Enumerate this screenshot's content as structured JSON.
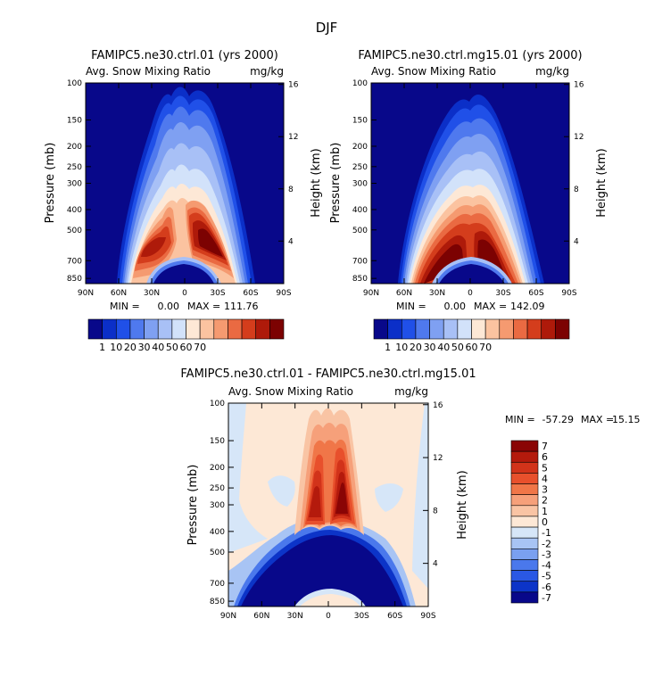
{
  "figure": {
    "title": "DJF"
  },
  "chart_data": [
    {
      "type": "contour",
      "id": "p1",
      "title": "FAMIPC5.ne30.ctrl.01 (yrs 2000)",
      "subtitle_left": "Avg. Snow Mixing Ratio",
      "subtitle_right": "mg/kg",
      "xlabel": "",
      "ylabel": "Pressure (mb)",
      "ylabel_right": "Height (km)",
      "xticks": [
        "90N",
        "60N",
        "30N",
        "0",
        "30S",
        "60S",
        "90S"
      ],
      "yticks": [
        "100",
        "150",
        "200",
        "250",
        "300",
        "400",
        "500",
        "700",
        "850"
      ],
      "yticks_right": [
        "16",
        "12",
        "8",
        "4"
      ],
      "stats": {
        "min_label": "MIN =",
        "min": "0.00",
        "max_label": "MAX =",
        "max": "111.76"
      },
      "colorbar": {
        "labels": [
          "1",
          "10",
          "20",
          "30",
          "40",
          "50",
          "60",
          "70"
        ],
        "colors": [
          "#08088a",
          "#0b2fc8",
          "#2050e8",
          "#4f79ee",
          "#7fa0f2",
          "#a8c0f6",
          "#d2e2fa",
          "#fde8d6",
          "#fbc3a0",
          "#f59a70",
          "#ea6a42",
          "#d43d1c",
          "#ae1a0a",
          "#7c0202"
        ]
      }
    },
    {
      "type": "contour",
      "id": "p2",
      "title": "FAMIPC5.ne30.ctrl.mg15.01 (yrs 2000)",
      "subtitle_left": "Avg. Snow Mixing Ratio",
      "subtitle_right": "mg/kg",
      "xlabel": "",
      "ylabel": "Pressure (mb)",
      "ylabel_right": "Height (km)",
      "xticks": [
        "90N",
        "60N",
        "30N",
        "0",
        "30S",
        "60S",
        "90S"
      ],
      "yticks": [
        "100",
        "150",
        "200",
        "250",
        "300",
        "400",
        "500",
        "700",
        "850"
      ],
      "yticks_right": [
        "16",
        "12",
        "8",
        "4"
      ],
      "stats": {
        "min_label": "MIN =",
        "min": "0.00",
        "max_label": "MAX =",
        "max": "142.09"
      },
      "colorbar": {
        "labels": [
          "1",
          "10",
          "20",
          "30",
          "40",
          "50",
          "60",
          "70"
        ],
        "colors": [
          "#08088a",
          "#0b2fc8",
          "#2050e8",
          "#4f79ee",
          "#7fa0f2",
          "#a8c0f6",
          "#d2e2fa",
          "#fde8d6",
          "#fbc3a0",
          "#f59a70",
          "#ea6a42",
          "#d43d1c",
          "#ae1a0a",
          "#7c0202"
        ]
      }
    },
    {
      "type": "contour",
      "id": "p3",
      "title": "FAMIPC5.ne30.ctrl.01 - FAMIPC5.ne30.ctrl.mg15.01",
      "subtitle_left": "Avg. Snow Mixing Ratio",
      "subtitle_right": "mg/kg",
      "xlabel": "",
      "ylabel": "Pressure (mb)",
      "ylabel_right": "Height (km)",
      "xticks": [
        "90N",
        "60N",
        "30N",
        "0",
        "30S",
        "60S",
        "90S"
      ],
      "yticks": [
        "100",
        "150",
        "200",
        "250",
        "300",
        "400",
        "500",
        "700",
        "850"
      ],
      "yticks_right": [
        "16",
        "12",
        "8",
        "4"
      ],
      "stats": {
        "min_label": "MIN =",
        "min": "-57.29",
        "max_label": "MAX =",
        "max": "15.15"
      },
      "colorbar": {
        "labels": [
          "7",
          "6",
          "5",
          "4",
          "3",
          "2",
          "1",
          "0",
          "-1",
          "-2",
          "-3",
          "-4",
          "-5",
          "-6",
          "-7"
        ],
        "colors": [
          "#8a0505",
          "#b41a0c",
          "#d2331a",
          "#e8502c",
          "#f07648",
          "#f6a07a",
          "#f9c4a4",
          "#fde8d6",
          "#d6e6f8",
          "#a8c4f4",
          "#7aa0f0",
          "#4a78ec",
          "#2a58e4",
          "#0c34c8",
          "#08088a"
        ]
      }
    }
  ]
}
